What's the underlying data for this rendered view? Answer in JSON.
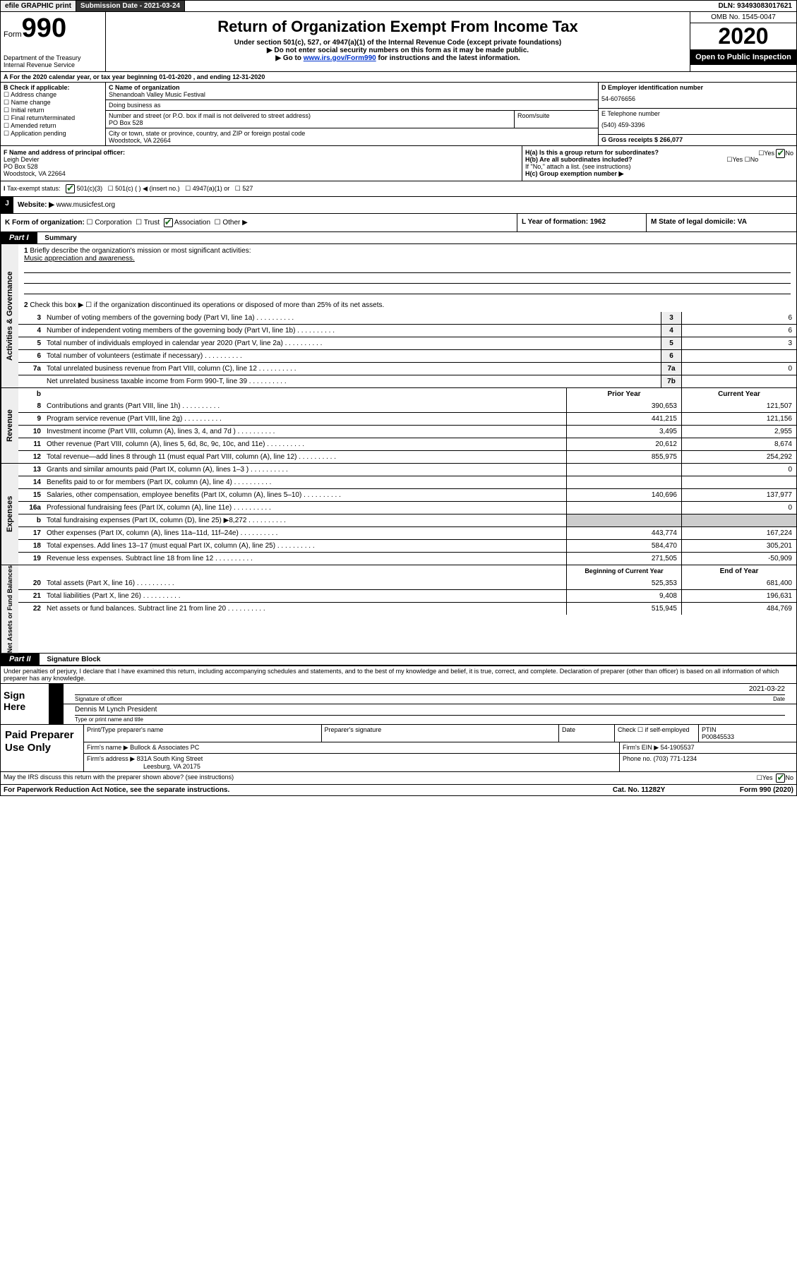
{
  "topbar": {
    "efile": "efile GRAPHIC print",
    "submission_label": "Submission Date - 2021-03-24",
    "dln": "DLN: 93493083017621"
  },
  "header": {
    "form_prefix": "Form",
    "form_number": "990",
    "title": "Return of Organization Exempt From Income Tax",
    "subtitle": "Under section 501(c), 527, or 4947(a)(1) of the Internal Revenue Code (except private foundations)",
    "note1": "▶ Do not enter social security numbers on this form as it may be made public.",
    "note2_prefix": "▶ Go to ",
    "note2_link": "www.irs.gov/Form990",
    "note2_suffix": " for instructions and the latest information.",
    "dept": "Department of the Treasury",
    "irs": "Internal Revenue Service",
    "omb": "OMB No. 1545-0047",
    "year": "2020",
    "open_public": "Open to Public Inspection"
  },
  "row_a": "A For the 2020 calendar year, or tax year beginning 01-01-2020   , and ending 12-31-2020",
  "col_b": {
    "header": "B Check if applicable:",
    "items": [
      "Address change",
      "Name change",
      "Initial return",
      "Final return/terminated",
      "Amended return",
      "Application pending"
    ]
  },
  "col_c": {
    "name_label": "C Name of organization",
    "name": "Shenandoah Valley Music Festival",
    "dba_label": "Doing business as",
    "dba": "",
    "street_label": "Number and street (or P.O. box if mail is not delivered to street address)",
    "street": "PO Box 528",
    "suite_label": "Room/suite",
    "city_label": "City or town, state or province, country, and ZIP or foreign postal code",
    "city": "Woodstock, VA  22664"
  },
  "col_d": {
    "ein_label": "D Employer identification number",
    "ein": "54-6076656",
    "phone_label": "E Telephone number",
    "phone": "(540) 459-3396",
    "gross_label": "G Gross receipts $ 266,077"
  },
  "row_f": {
    "label": "F  Name and address of principal officer:",
    "name": "Leigh Devier",
    "street": "PO Box 528",
    "city": "Woodstock, VA  22664"
  },
  "row_h": {
    "ha_label": "H(a)  Is this a group return for subordinates?",
    "hb_label": "H(b)  Are all subordinates included?",
    "hb_note": "If \"No,\" attach a list. (see instructions)",
    "hc_label": "H(c)  Group exemption number ▶"
  },
  "row_i": {
    "label": "Tax-exempt status:",
    "opts": [
      "501(c)(3)",
      "501(c) (  ) ◀ (insert no.)",
      "4947(a)(1) or",
      "527"
    ]
  },
  "row_j": {
    "label": "Website: ▶",
    "value": " www.musicfest.org"
  },
  "row_k": {
    "label": "K Form of organization:",
    "opts": [
      "Corporation",
      "Trust",
      "Association",
      "Other ▶"
    ],
    "l_label": "L Year of formation: 1962",
    "m_label": "M State of legal domicile: VA"
  },
  "part1": {
    "header": "Part I",
    "title": "Summary",
    "q1": "Briefly describe the organization's mission or most significant activities:",
    "mission": "Music appreciation and awareness.",
    "q2": "Check this box ▶ ☐  if the organization discontinued its operations or disposed of more than 25% of its net assets."
  },
  "governance_sidetab": "Activities & Governance",
  "revenue_sidetab": "Revenue",
  "expenses_sidetab": "Expenses",
  "netassets_sidetab": "Net Assets or Fund Balances",
  "gov_lines": [
    {
      "n": "3",
      "d": "Number of voting members of the governing body (Part VI, line 1a)",
      "box": "3",
      "v": "6"
    },
    {
      "n": "4",
      "d": "Number of independent voting members of the governing body (Part VI, line 1b)",
      "box": "4",
      "v": "6"
    },
    {
      "n": "5",
      "d": "Total number of individuals employed in calendar year 2020 (Part V, line 2a)",
      "box": "5",
      "v": "3"
    },
    {
      "n": "6",
      "d": "Total number of volunteers (estimate if necessary)",
      "box": "6",
      "v": ""
    },
    {
      "n": "7a",
      "d": "Total unrelated business revenue from Part VIII, column (C), line 12",
      "box": "7a",
      "v": "0"
    },
    {
      "n": "",
      "d": "Net unrelated business taxable income from Form 990-T, line 39",
      "box": "7b",
      "v": ""
    }
  ],
  "colheads": {
    "b": "b",
    "prior": "Prior Year",
    "current": "Current Year"
  },
  "rev_lines": [
    {
      "n": "8",
      "d": "Contributions and grants (Part VIII, line 1h)",
      "p": "390,653",
      "c": "121,507"
    },
    {
      "n": "9",
      "d": "Program service revenue (Part VIII, line 2g)",
      "p": "441,215",
      "c": "121,156"
    },
    {
      "n": "10",
      "d": "Investment income (Part VIII, column (A), lines 3, 4, and 7d )",
      "p": "3,495",
      "c": "2,955"
    },
    {
      "n": "11",
      "d": "Other revenue (Part VIII, column (A), lines 5, 6d, 8c, 9c, 10c, and 11e)",
      "p": "20,612",
      "c": "8,674"
    },
    {
      "n": "12",
      "d": "Total revenue—add lines 8 through 11 (must equal Part VIII, column (A), line 12)",
      "p": "855,975",
      "c": "254,292"
    }
  ],
  "exp_lines": [
    {
      "n": "13",
      "d": "Grants and similar amounts paid (Part IX, column (A), lines 1–3 )",
      "p": "",
      "c": "0"
    },
    {
      "n": "14",
      "d": "Benefits paid to or for members (Part IX, column (A), line 4)",
      "p": "",
      "c": ""
    },
    {
      "n": "15",
      "d": "Salaries, other compensation, employee benefits (Part IX, column (A), lines 5–10)",
      "p": "140,696",
      "c": "137,977"
    },
    {
      "n": "16a",
      "d": "Professional fundraising fees (Part IX, column (A), line 11e)",
      "p": "",
      "c": "0"
    },
    {
      "n": "b",
      "d": "Total fundraising expenses (Part IX, column (D), line 25) ▶8,272",
      "p": "GREY",
      "c": "GREY"
    },
    {
      "n": "17",
      "d": "Other expenses (Part IX, column (A), lines 11a–11d, 11f–24e)",
      "p": "443,774",
      "c": "167,224"
    },
    {
      "n": "18",
      "d": "Total expenses. Add lines 13–17 (must equal Part IX, column (A), line 25)",
      "p": "584,470",
      "c": "305,201"
    },
    {
      "n": "19",
      "d": "Revenue less expenses. Subtract line 18 from line 12",
      "p": "271,505",
      "c": "-50,909"
    }
  ],
  "na_heads": {
    "prior": "Beginning of Current Year",
    "current": "End of Year"
  },
  "na_lines": [
    {
      "n": "20",
      "d": "Total assets (Part X, line 16)",
      "p": "525,353",
      "c": "681,400"
    },
    {
      "n": "21",
      "d": "Total liabilities (Part X, line 26)",
      "p": "9,408",
      "c": "196,631"
    },
    {
      "n": "22",
      "d": "Net assets or fund balances. Subtract line 21 from line 20",
      "p": "515,945",
      "c": "484,769"
    }
  ],
  "part2": {
    "header": "Part II",
    "title": "Signature Block",
    "perjury": "Under penalties of perjury, I declare that I have examined this return, including accompanying schedules and statements, and to the best of my knowledge and belief, it is true, correct, and complete. Declaration of preparer (other than officer) is based on all information of which preparer has any knowledge."
  },
  "sign": {
    "label": "Sign Here",
    "date": "2021-03-22",
    "sig_caption": "Signature of officer",
    "date_caption": "Date",
    "name": "Dennis M Lynch  President",
    "name_caption": "Type or print name and title"
  },
  "paid": {
    "label": "Paid Preparer Use Only",
    "h_name": "Print/Type preparer's name",
    "h_sig": "Preparer's signature",
    "h_date": "Date",
    "h_check": "Check ☐ if self-employed",
    "h_ptin": "PTIN",
    "ptin": "P00845533",
    "firm_label": "Firm's name    ▶",
    "firm": "Bullock & Associates PC",
    "ein_label": "Firm's EIN ▶ 54-1905537",
    "addr_label": "Firm's address ▶",
    "addr": "831A South King Street",
    "addr2": "Leesburg, VA  20175",
    "phone_label": "Phone no. (703) 771-1234"
  },
  "footer": {
    "discuss": "May the IRS discuss this return with the preparer shown above? (see instructions)",
    "pra": "For Paperwork Reduction Act Notice, see the separate instructions.",
    "cat": "Cat. No. 11282Y",
    "form": "Form 990 (2020)"
  }
}
